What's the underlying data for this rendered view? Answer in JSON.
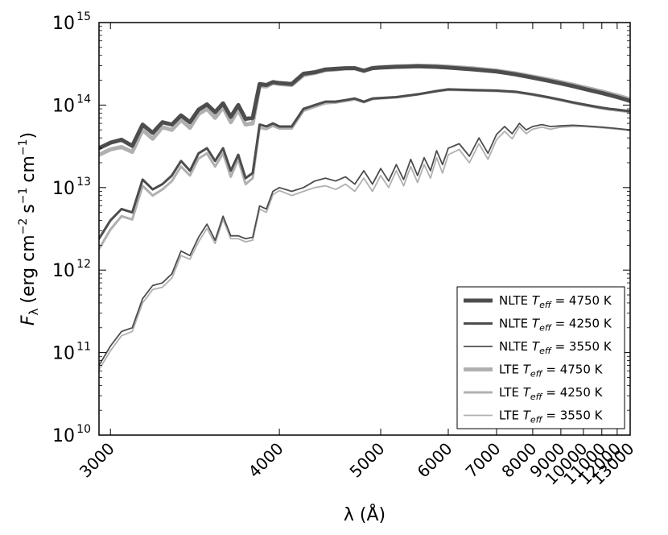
{
  "chart_data": {
    "type": "line",
    "title": "",
    "xlabel": "λ (Å)",
    "ylabel_main": "F",
    "ylabel_sub": "λ",
    "ylabel_units": "(erg cm",
    "ylabel_units_tail": "s",
    "ylabel_units_end": "cm",
    "ylabel_exp_a": "−2",
    "ylabel_exp_b": "−1",
    "ylabel_exp_c": "−1",
    "ylabel_close": ")",
    "x_scale": "reciprocal",
    "y_scale": "log",
    "xlim": [
      2950,
      13000
    ],
    "ylim": [
      10000000000.0,
      1000000000000000.0
    ],
    "x_ticks": [
      3000,
      4000,
      5000,
      6000,
      7000,
      8000,
      9000,
      10000,
      11000,
      12000,
      13000
    ],
    "x_tick_labels": [
      "3000",
      "4000",
      "5000",
      "6000",
      "7000",
      "8000",
      "9000",
      "10000",
      "11000",
      "12000",
      "13000"
    ],
    "y_ticks": [
      10,
      11,
      12,
      13,
      14,
      15
    ],
    "y_tick_base": "10",
    "y_tick_exponents": [
      "10",
      "11",
      "12",
      "13",
      "14",
      "15"
    ],
    "legend_position": "lower-right",
    "series": [
      {
        "name": "NLTE",
        "teff": "4750 K",
        "color": "#4d4d4d",
        "width": 5,
        "x": [
          2950,
          3000,
          3050,
          3100,
          3150,
          3200,
          3250,
          3300,
          3350,
          3400,
          3450,
          3500,
          3550,
          3600,
          3650,
          3700,
          3750,
          3800,
          3850,
          3900,
          3950,
          4000,
          4100,
          4200,
          4300,
          4400,
          4500,
          4600,
          4700,
          4800,
          4900,
          5000,
          5200,
          5500,
          5800,
          6000,
          6500,
          7000,
          7500,
          8000,
          8500,
          9000,
          9500,
          10000,
          10500,
          11000,
          11500,
          12000,
          12500,
          13000
        ],
        "y": [
          30000000000000.0,
          35000000000000.0,
          38000000000000.0,
          32000000000000.0,
          58000000000000.0,
          46000000000000.0,
          62000000000000.0,
          58000000000000.0,
          75000000000000.0,
          62000000000000.0,
          88000000000000.0,
          102000000000000.0,
          82000000000000.0,
          105000000000000.0,
          72000000000000.0,
          100000000000000.0,
          68000000000000.0,
          70000000000000.0,
          180000000000000.0,
          175000000000000.0,
          190000000000000.0,
          185000000000000.0,
          180000000000000.0,
          240000000000000.0,
          250000000000000.0,
          270000000000000.0,
          275000000000000.0,
          280000000000000.0,
          280000000000000.0,
          260000000000000.0,
          280000000000000.0,
          285000000000000.0,
          290000000000000.0,
          295000000000000.0,
          290000000000000.0,
          285000000000000.0,
          270000000000000.0,
          255000000000000.0,
          235000000000000.0,
          215000000000000.0,
          198000000000000.0,
          183000000000000.0,
          170000000000000.0,
          158000000000000.0,
          148000000000000.0,
          140000000000000.0,
          132000000000000.0,
          125000000000000.0,
          118000000000000.0,
          112000000000000.0
        ]
      },
      {
        "name": "NLTE",
        "teff": "4250 K",
        "color": "#4d4d4d",
        "width": 3,
        "x": [
          2950,
          3000,
          3050,
          3100,
          3150,
          3200,
          3250,
          3300,
          3350,
          3400,
          3450,
          3500,
          3550,
          3600,
          3650,
          3700,
          3750,
          3800,
          3850,
          3900,
          3950,
          4000,
          4100,
          4200,
          4300,
          4400,
          4500,
          4600,
          4700,
          4800,
          4900,
          5000,
          5200,
          5500,
          5800,
          6000,
          6500,
          7000,
          7500,
          8000,
          8500,
          9000,
          9500,
          10000,
          10500,
          11000,
          11500,
          12000,
          12500,
          13000
        ],
        "y": [
          2400000000000.0,
          4000000000000.0,
          5500000000000.0,
          5000000000000.0,
          12500000000000.0,
          9500000000000.0,
          11000000000000.0,
          14000000000000.0,
          21000000000000.0,
          16000000000000.0,
          26000000000000.0,
          30000000000000.0,
          21000000000000.0,
          30000000000000.0,
          16000000000000.0,
          25000000000000.0,
          13000000000000.0,
          15000000000000.0,
          58000000000000.0,
          55000000000000.0,
          60000000000000.0,
          55000000000000.0,
          55000000000000.0,
          90000000000000.0,
          100000000000000.0,
          110000000000000.0,
          110000000000000.0,
          115000000000000.0,
          120000000000000.0,
          110000000000000.0,
          120000000000000.0,
          122000000000000.0,
          125000000000000.0,
          135000000000000.0,
          148000000000000.0,
          155000000000000.0,
          152000000000000.0,
          150000000000000.0,
          145000000000000.0,
          135000000000000.0,
          125000000000000.0,
          116000000000000.0,
          108000000000000.0,
          102000000000000.0,
          97000000000000.0,
          93000000000000.0,
          90000000000000.0,
          88000000000000.0,
          86000000000000.0,
          84000000000000.0
        ]
      },
      {
        "name": "NLTE",
        "teff": "3550 K",
        "color": "#4d4d4d",
        "width": 1.8,
        "x": [
          2950,
          3000,
          3050,
          3100,
          3150,
          3200,
          3250,
          3300,
          3350,
          3400,
          3450,
          3500,
          3550,
          3600,
          3650,
          3700,
          3750,
          3800,
          3850,
          3900,
          3950,
          4000,
          4100,
          4200,
          4300,
          4400,
          4500,
          4600,
          4700,
          4800,
          4900,
          5000,
          5100,
          5200,
          5300,
          5400,
          5500,
          5600,
          5700,
          5800,
          5900,
          6000,
          6200,
          6400,
          6600,
          6800,
          7000,
          7200,
          7400,
          7600,
          7800,
          8000,
          8300,
          8600,
          9000,
          9500,
          10000,
          11000,
          12000,
          13000
        ],
        "y": [
          70000000000.0,
          120000000000.0,
          180000000000.0,
          200000000000.0,
          450000000000.0,
          650000000000.0,
          700000000000.0,
          900000000000.0,
          1700000000000.0,
          1500000000000.0,
          2500000000000.0,
          3600000000000.0,
          2300000000000.0,
          4500000000000.0,
          2600000000000.0,
          2600000000000.0,
          2400000000000.0,
          2500000000000.0,
          6000000000000.0,
          5500000000000.0,
          9000000000000.0,
          10000000000000.0,
          9000000000000.0,
          10000000000000.0,
          12000000000000.0,
          13000000000000.0,
          12000000000000.0,
          13500000000000.0,
          11000000000000.0,
          16000000000000.0,
          11000000000000.0,
          17000000000000.0,
          12000000000000.0,
          19000000000000.0,
          12500000000000.0,
          22000000000000.0,
          14000000000000.0,
          23000000000000.0,
          16000000000000.0,
          28000000000000.0,
          19000000000000.0,
          30000000000000.0,
          34000000000000.0,
          24000000000000.0,
          40000000000000.0,
          26000000000000.0,
          44000000000000.0,
          55000000000000.0,
          45000000000000.0,
          60000000000000.0,
          50000000000000.0,
          55000000000000.0,
          58000000000000.0,
          55000000000000.0,
          56000000000000.0,
          57000000000000.0,
          56000000000000.0,
          54000000000000.0,
          52000000000000.0,
          50000000000000.0
        ]
      },
      {
        "name": "LTE",
        "teff": "4750 K",
        "color": "#b0b0b0",
        "width": 5,
        "x": [
          2950,
          3000,
          3050,
          3100,
          3150,
          3200,
          3250,
          3300,
          3350,
          3400,
          3450,
          3500,
          3550,
          3600,
          3650,
          3700,
          3750,
          3800,
          3850,
          3900,
          3950,
          4000,
          4100,
          4200,
          4300,
          4400,
          4500,
          4600,
          4700,
          4800,
          4900,
          5000,
          5200,
          5500,
          5800,
          6000,
          6500,
          7000,
          7500,
          8000,
          8500,
          9000,
          9500,
          10000,
          10500,
          11000,
          11500,
          12000,
          12500,
          13000
        ],
        "y": [
          25000000000000.0,
          29000000000000.0,
          31000000000000.0,
          27000000000000.0,
          50000000000000.0,
          39000000000000.0,
          54000000000000.0,
          50000000000000.0,
          66000000000000.0,
          53000000000000.0,
          78000000000000.0,
          90000000000000.0,
          70000000000000.0,
          94000000000000.0,
          62000000000000.0,
          88000000000000.0,
          58000000000000.0,
          60000000000000.0,
          170000000000000.0,
          168000000000000.0,
          185000000000000.0,
          180000000000000.0,
          175000000000000.0,
          230000000000000.0,
          245000000000000.0,
          265000000000000.0,
          270000000000000.0,
          278000000000000.0,
          280000000000000.0,
          260000000000000.0,
          282000000000000.0,
          288000000000000.0,
          295000000000000.0,
          300000000000000.0,
          298000000000000.0,
          292000000000000.0,
          278000000000000.0,
          262000000000000.0,
          242000000000000.0,
          222000000000000.0,
          205000000000000.0,
          190000000000000.0,
          177000000000000.0,
          165000000000000.0,
          155000000000000.0,
          146000000000000.0,
          138000000000000.0,
          131000000000000.0,
          124000000000000.0,
          117000000000000.0
        ]
      },
      {
        "name": "LTE",
        "teff": "4250 K",
        "color": "#b0b0b0",
        "width": 3,
        "x": [
          2950,
          3000,
          3050,
          3100,
          3150,
          3200,
          3250,
          3300,
          3350,
          3400,
          3450,
          3500,
          3550,
          3600,
          3650,
          3700,
          3750,
          3800,
          3850,
          3900,
          3950,
          4000,
          4100,
          4200,
          4300,
          4400,
          4500,
          4600,
          4700,
          4800,
          4900,
          5000,
          5200,
          5500,
          5800,
          6000,
          6500,
          7000,
          7500,
          8000,
          8500,
          9000,
          9500,
          10000,
          10500,
          11000,
          11500,
          12000,
          12500,
          13000
        ],
        "y": [
          1800000000000.0,
          3100000000000.0,
          4500000000000.0,
          4100000000000.0,
          10500000000000.0,
          8000000000000.0,
          9500000000000.0,
          12000000000000.0,
          18000000000000.0,
          14000000000000.0,
          22500000000000.0,
          26000000000000.0,
          18000000000000.0,
          26000000000000.0,
          13500000000000.0,
          22000000000000.0,
          11000000000000.0,
          13000000000000.0,
          53000000000000.0,
          51000000000000.0,
          56000000000000.0,
          52000000000000.0,
          52000000000000.0,
          85000000000000.0,
          95000000000000.0,
          105000000000000.0,
          107000000000000.0,
          112000000000000.0,
          117000000000000.0,
          108000000000000.0,
          118000000000000.0,
          120000000000000.0,
          124000000000000.0,
          134000000000000.0,
          147000000000000.0,
          153000000000000.0,
          150000000000000.0,
          148000000000000.0,
          143000000000000.0,
          133000000000000.0,
          123000000000000.0,
          114000000000000.0,
          106000000000000.0,
          100000000000000.0,
          95000000000000.0,
          91000000000000.0,
          88000000000000.0,
          86000000000000.0,
          84000000000000.0,
          82000000000000.0
        ]
      },
      {
        "name": "LTE",
        "teff": "3550 K",
        "color": "#b0b0b0",
        "width": 1.8,
        "x": [
          2950,
          3000,
          3050,
          3100,
          3150,
          3200,
          3250,
          3300,
          3350,
          3400,
          3450,
          3500,
          3550,
          3600,
          3650,
          3700,
          3750,
          3800,
          3850,
          3900,
          3950,
          4000,
          4100,
          4200,
          4300,
          4400,
          4500,
          4600,
          4700,
          4800,
          4900,
          5000,
          5100,
          5200,
          5300,
          5400,
          5500,
          5600,
          5700,
          5800,
          5900,
          6000,
          6200,
          6400,
          6600,
          6800,
          7000,
          7200,
          7400,
          7600,
          7800,
          8000,
          8300,
          8600,
          9000,
          9500,
          10000,
          11000,
          12000,
          13000
        ],
        "y": [
          62000000000.0,
          105000000000.0,
          160000000000.0,
          180000000000.0,
          400000000000.0,
          580000000000.0,
          620000000000.0,
          800000000000.0,
          1500000000000.0,
          1350000000000.0,
          2200000000000.0,
          3200000000000.0,
          2100000000000.0,
          4100000000000.0,
          2400000000000.0,
          2400000000000.0,
          2200000000000.0,
          2300000000000.0,
          5500000000000.0,
          5000000000000.0,
          8200000000000.0,
          9200000000000.0,
          8000000000000.0,
          9000000000000.0,
          10000000000000.0,
          10500000000000.0,
          9500000000000.0,
          11000000000000.0,
          9000000000000.0,
          13000000000000.0,
          9000000000000.0,
          14000000000000.0,
          10000000000000.0,
          16000000000000.0,
          10500000000000.0,
          18000000000000.0,
          11500000000000.0,
          19000000000000.0,
          13000000000000.0,
          23000000000000.0,
          15000000000000.0,
          25000000000000.0,
          29000000000000.0,
          20000000000000.0,
          34000000000000.0,
          22000000000000.0,
          38000000000000.0,
          48000000000000.0,
          39000000000000.0,
          55000000000000.0,
          45000000000000.0,
          51000000000000.0,
          54000000000000.0,
          51000000000000.0,
          54000000000000.0,
          55000000000000.0,
          55000000000000.0,
          53000000000000.0,
          51000000000000.0,
          49000000000000.0
        ]
      }
    ],
    "legend_order": [
      0,
      1,
      2,
      3,
      4,
      5
    ],
    "legend_math_label": "T",
    "legend_math_sub": "eff",
    "legend_eq": " = "
  }
}
